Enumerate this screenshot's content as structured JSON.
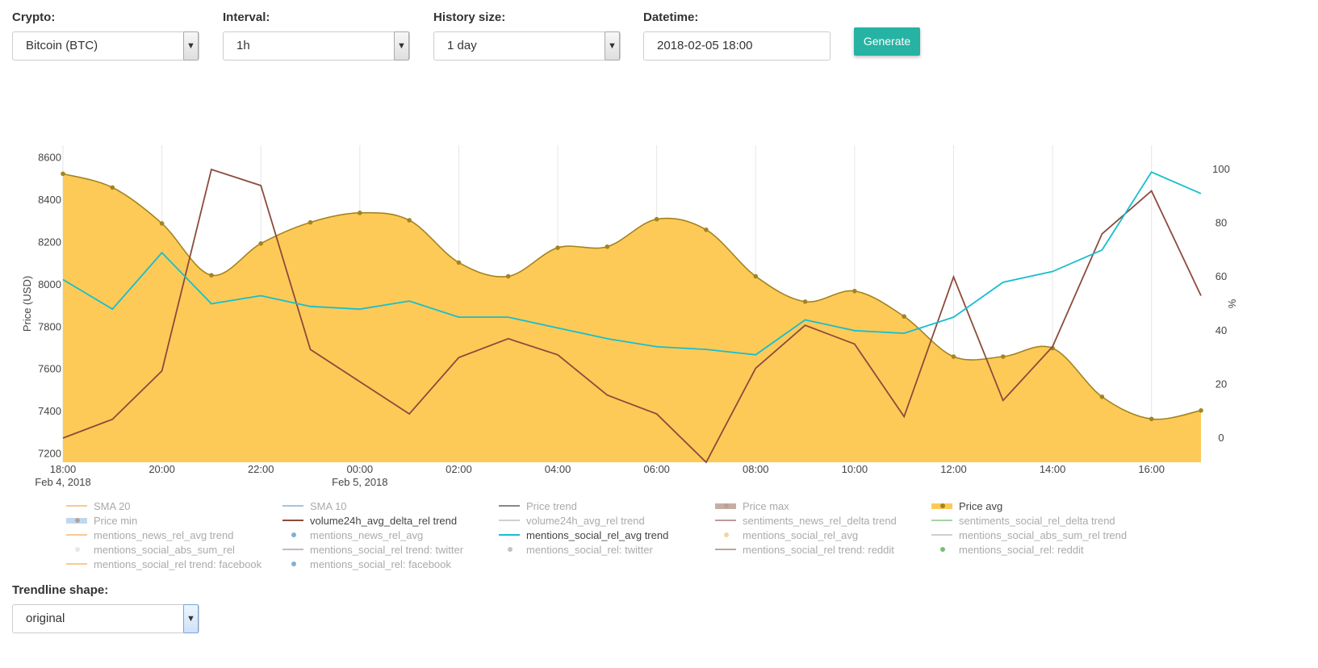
{
  "controls": {
    "crypto": {
      "label": "Crypto:",
      "value": "Bitcoin (BTC)"
    },
    "interval": {
      "label": "Interval:",
      "value": "1h"
    },
    "history": {
      "label": "History size:",
      "value": "1 day"
    },
    "datetime": {
      "label": "Datetime:",
      "value": "2018-02-05 18:00"
    },
    "generate_label": "Generate"
  },
  "trendline": {
    "label": "Trendline shape:",
    "value": "original"
  },
  "chart_data": {
    "type": "line",
    "xlabel": "",
    "ylabel": "Price (USD)",
    "y2label": "%",
    "ylim": [
      7160,
      8660
    ],
    "y2lim": [
      -9,
      109
    ],
    "yticks": [
      7200,
      7400,
      7600,
      7800,
      8000,
      8200,
      8400,
      8600
    ],
    "y2ticks": [
      0,
      20,
      40,
      60,
      80,
      100
    ],
    "x": [
      0,
      1,
      2,
      3,
      4,
      5,
      6,
      7,
      8,
      9,
      10,
      11,
      12,
      13,
      14,
      15,
      16,
      17,
      18,
      19,
      20,
      21,
      22,
      23
    ],
    "xtick_labels": [
      {
        "x": 0,
        "label": "18:00",
        "sub": "Feb 4, 2018"
      },
      {
        "x": 2,
        "label": "20:00"
      },
      {
        "x": 4,
        "label": "22:00"
      },
      {
        "x": 6,
        "label": "00:00",
        "sub": "Feb 5, 2018"
      },
      {
        "x": 8,
        "label": "02:00"
      },
      {
        "x": 10,
        "label": "04:00"
      },
      {
        "x": 12,
        "label": "06:00"
      },
      {
        "x": 14,
        "label": "08:00"
      },
      {
        "x": 16,
        "label": "10:00"
      },
      {
        "x": 18,
        "label": "12:00"
      },
      {
        "x": 20,
        "label": "14:00"
      },
      {
        "x": 22,
        "label": "16:00"
      }
    ],
    "grid": true,
    "series": [
      {
        "name": "Price avg",
        "axis": "y",
        "style": "area",
        "values": [
          8525,
          8460,
          8290,
          8045,
          8195,
          8295,
          8340,
          8305,
          8105,
          8040,
          8175,
          8180,
          8310,
          8260,
          8040,
          7920,
          7970,
          7850,
          7660,
          7660,
          7700,
          7470,
          7365,
          7405
        ]
      },
      {
        "name": "volume24h_avg_delta_rel trend",
        "axis": "y2",
        "style": "line",
        "values": [
          0,
          7,
          25,
          100,
          94,
          33,
          21,
          9,
          30,
          37,
          31,
          16,
          9,
          -9,
          26,
          42,
          35,
          8,
          60,
          14,
          34,
          76,
          92,
          53
        ]
      },
      {
        "name": "mentions_social_rel_avg trend",
        "axis": "y2",
        "style": "line",
        "values": [
          59,
          48,
          69,
          50,
          53,
          49,
          48,
          51,
          45,
          45,
          41,
          37,
          34,
          33,
          31,
          44,
          40,
          39,
          45,
          58,
          62,
          70,
          99,
          91
        ]
      }
    ],
    "legend": [
      {
        "name": "SMA 20",
        "symbol": "line",
        "color": "#f7b267",
        "active": false
      },
      {
        "name": "SMA 10",
        "symbol": "line",
        "color": "#7fa9c9",
        "active": false
      },
      {
        "name": "Price trend",
        "symbol": "line",
        "color": "#555555",
        "active": false
      },
      {
        "name": "Price max",
        "symbol": "fill",
        "color": "#b08c80",
        "active": false
      },
      {
        "name": "Price avg",
        "symbol": "fill",
        "color": "#f7b733",
        "active": true
      },
      {
        "name": "Price min",
        "symbol": "fill",
        "color": "#a6c8e6",
        "active": false
      },
      {
        "name": "volume24h_avg_delta_rel trend",
        "symbol": "line",
        "color": "#8c4b3c",
        "active": true
      },
      {
        "name": "volume24h_avg_rel trend",
        "symbol": "line",
        "color": "#bbbbbb",
        "active": false
      },
      {
        "name": "sentiments_news_rel_delta trend",
        "symbol": "line",
        "color": "#a07070",
        "active": false
      },
      {
        "name": "sentiments_social_rel_delta trend",
        "symbol": "line",
        "color": "#7fbf7f",
        "active": false
      },
      {
        "name": "mentions_news_rel_avg trend",
        "symbol": "line",
        "color": "#f7b267",
        "active": false
      },
      {
        "name": "mentions_news_rel_avg",
        "symbol": "dot",
        "color": "#4a8fc4",
        "active": false
      },
      {
        "name": "mentions_social_rel_avg trend",
        "symbol": "line",
        "color": "#17becf",
        "active": true
      },
      {
        "name": "mentions_social_rel_avg",
        "symbol": "dot",
        "color": "#f0c27a",
        "active": false
      },
      {
        "name": "mentions_social_abs_sum_rel trend",
        "symbol": "line",
        "color": "#bbbbbb",
        "active": false
      },
      {
        "name": "mentions_social_abs_sum_rel",
        "symbol": "dot",
        "color": "#dddddd",
        "active": false
      },
      {
        "name": "mentions_social_rel trend: twitter",
        "symbol": "line",
        "color": "#b49a9a",
        "active": false
      },
      {
        "name": "mentions_social_rel: twitter",
        "symbol": "dot",
        "color": "#aaaaaa",
        "active": false
      },
      {
        "name": "mentions_social_rel trend: reddit",
        "symbol": "line",
        "color": "#a08070",
        "active": false
      },
      {
        "name": "mentions_social_rel: reddit",
        "symbol": "dot",
        "color": "#3aa43a",
        "active": false
      },
      {
        "name": "mentions_social_rel trend: facebook",
        "symbol": "line",
        "color": "#f7b267",
        "active": false
      },
      {
        "name": "mentions_social_rel: facebook",
        "symbol": "dot",
        "color": "#4a8fc4",
        "active": false
      }
    ]
  },
  "colors": {
    "area_fill": "#fdca57",
    "area_line": "#a38420",
    "volume_line": "#8c4b3c",
    "mentions_line": "#17becf",
    "accent": "#26b3a3"
  }
}
